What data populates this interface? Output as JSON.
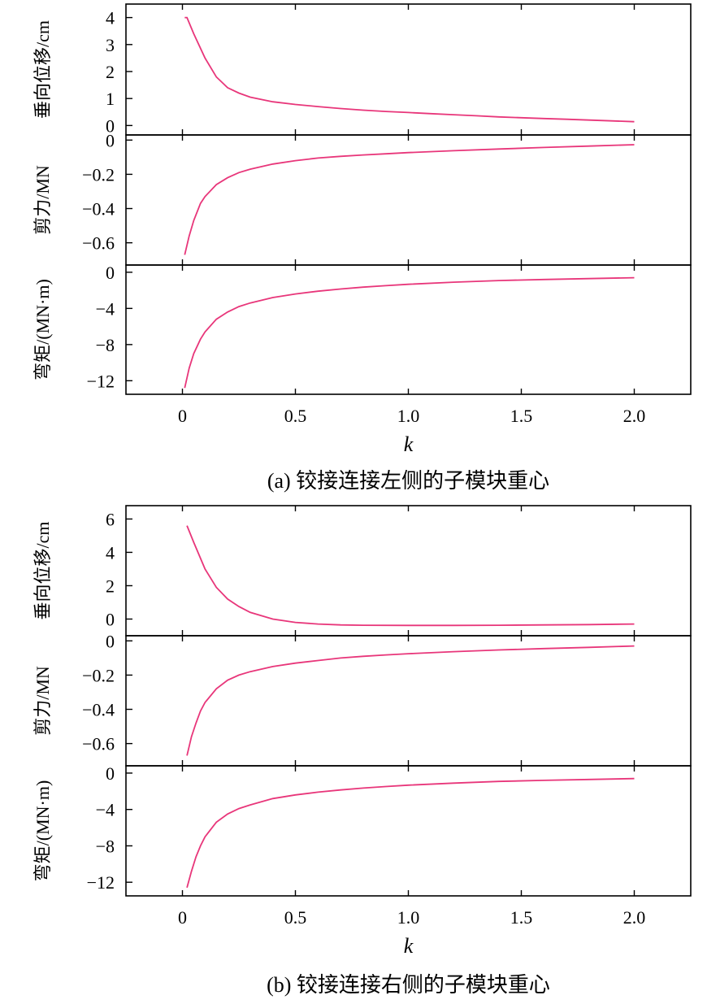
{
  "chart_data": [
    {
      "type": "line",
      "caption": "(a) 铰接连接左侧的子模块重心",
      "xlabel": "k",
      "x_ticks": [
        "0",
        "0.5",
        "1.0",
        "1.5",
        "2.0"
      ],
      "xlim": [
        -0.25,
        2.25
      ],
      "panels": [
        {
          "ylabel": "垂向位移/cm",
          "ylim": [
            -0.35,
            4.5
          ],
          "y_ticks": [
            "0",
            "1",
            "2",
            "3",
            "4"
          ],
          "series": [
            {
              "color": "#e8367a",
              "x": [
                0.01,
                0.02,
                0.05,
                0.1,
                0.15,
                0.2,
                0.25,
                0.3,
                0.4,
                0.5,
                0.6,
                0.7,
                0.8,
                0.9,
                1.0,
                1.1,
                1.2,
                1.3,
                1.4,
                1.5,
                1.6,
                1.7,
                1.8,
                1.9,
                2.0
              ],
              "y": [
                4.0,
                4.0,
                3.4,
                2.5,
                1.8,
                1.4,
                1.2,
                1.05,
                0.88,
                0.78,
                0.7,
                0.63,
                0.57,
                0.52,
                0.48,
                0.44,
                0.4,
                0.36,
                0.32,
                0.29,
                0.26,
                0.23,
                0.2,
                0.17,
                0.14
              ]
            }
          ]
        },
        {
          "ylabel": "剪力/MN",
          "ylim": [
            -0.73,
            0.03
          ],
          "y_ticks": [
            "0",
            "−0.2",
            "−0.4",
            "−0.6"
          ],
          "series": [
            {
              "color": "#e8367a",
              "x": [
                0.01,
                0.03,
                0.05,
                0.08,
                0.1,
                0.15,
                0.2,
                0.25,
                0.3,
                0.4,
                0.5,
                0.6,
                0.7,
                0.8,
                0.9,
                1.0,
                1.2,
                1.4,
                1.6,
                1.8,
                2.0
              ],
              "y": [
                -0.67,
                -0.56,
                -0.47,
                -0.37,
                -0.33,
                -0.26,
                -0.22,
                -0.19,
                -0.17,
                -0.14,
                -0.12,
                -0.105,
                -0.095,
                -0.087,
                -0.08,
                -0.073,
                -0.062,
                -0.052,
                -0.043,
                -0.035,
                -0.027
              ]
            }
          ]
        },
        {
          "ylabel": "弯矩/(MN·m)",
          "ylim": [
            -13.5,
            0.8
          ],
          "y_ticks": [
            "0",
            "−4",
            "−8",
            "−12"
          ],
          "series": [
            {
              "color": "#e8367a",
              "x": [
                0.01,
                0.03,
                0.05,
                0.08,
                0.1,
                0.15,
                0.2,
                0.25,
                0.3,
                0.4,
                0.5,
                0.6,
                0.7,
                0.8,
                0.9,
                1.0,
                1.2,
                1.4,
                1.6,
                1.8,
                2.0
              ],
              "y": [
                -12.8,
                -10.6,
                -9.0,
                -7.4,
                -6.6,
                -5.2,
                -4.4,
                -3.8,
                -3.4,
                -2.8,
                -2.4,
                -2.1,
                -1.85,
                -1.65,
                -1.48,
                -1.33,
                -1.1,
                -0.92,
                -0.8,
                -0.7,
                -0.6
              ]
            }
          ]
        }
      ]
    },
    {
      "type": "line",
      "caption": "(b) 铰接连接右侧的子模块重心",
      "xlabel": "k",
      "x_ticks": [
        "0",
        "0.5",
        "1.0",
        "1.5",
        "2.0"
      ],
      "xlim": [
        -0.25,
        2.25
      ],
      "panels": [
        {
          "ylabel": "垂向位移/cm",
          "ylim": [
            -1.0,
            6.8
          ],
          "y_ticks": [
            "0",
            "2",
            "4",
            "6"
          ],
          "series": [
            {
              "color": "#e8367a",
              "x": [
                0.02,
                0.05,
                0.1,
                0.15,
                0.2,
                0.25,
                0.3,
                0.4,
                0.5,
                0.6,
                0.7,
                0.8,
                1.0,
                1.2,
                1.4,
                1.6,
                1.8,
                2.0
              ],
              "y": [
                5.6,
                4.6,
                3.0,
                1.9,
                1.2,
                0.75,
                0.4,
                0.0,
                -0.2,
                -0.3,
                -0.35,
                -0.37,
                -0.38,
                -0.38,
                -0.37,
                -0.35,
                -0.33,
                -0.3
              ]
            }
          ]
        },
        {
          "ylabel": "剪力/MN",
          "ylim": [
            -0.73,
            0.03
          ],
          "y_ticks": [
            "0",
            "−0.2",
            "−0.4",
            "−0.6"
          ],
          "series": [
            {
              "color": "#e8367a",
              "x": [
                0.02,
                0.04,
                0.06,
                0.08,
                0.1,
                0.15,
                0.2,
                0.25,
                0.3,
                0.4,
                0.5,
                0.6,
                0.7,
                0.8,
                0.9,
                1.0,
                1.2,
                1.4,
                1.6,
                1.8,
                2.0
              ],
              "y": [
                -0.67,
                -0.56,
                -0.48,
                -0.41,
                -0.36,
                -0.28,
                -0.23,
                -0.2,
                -0.18,
                -0.15,
                -0.13,
                -0.115,
                -0.1,
                -0.09,
                -0.082,
                -0.075,
                -0.063,
                -0.053,
                -0.045,
                -0.038,
                -0.03
              ]
            }
          ]
        },
        {
          "ylabel": "弯矩/(MN·m)",
          "ylim": [
            -13.5,
            0.8
          ],
          "y_ticks": [
            "0",
            "−4",
            "−8",
            "−12"
          ],
          "series": [
            {
              "color": "#e8367a",
              "x": [
                0.02,
                0.04,
                0.06,
                0.08,
                0.1,
                0.15,
                0.2,
                0.25,
                0.3,
                0.4,
                0.5,
                0.6,
                0.7,
                0.8,
                0.9,
                1.0,
                1.2,
                1.4,
                1.6,
                1.8,
                2.0
              ],
              "y": [
                -12.6,
                -10.8,
                -9.2,
                -8.0,
                -7.0,
                -5.4,
                -4.5,
                -3.9,
                -3.5,
                -2.8,
                -2.4,
                -2.1,
                -1.85,
                -1.65,
                -1.48,
                -1.33,
                -1.1,
                -0.92,
                -0.8,
                -0.7,
                -0.6
              ]
            }
          ]
        }
      ]
    }
  ]
}
